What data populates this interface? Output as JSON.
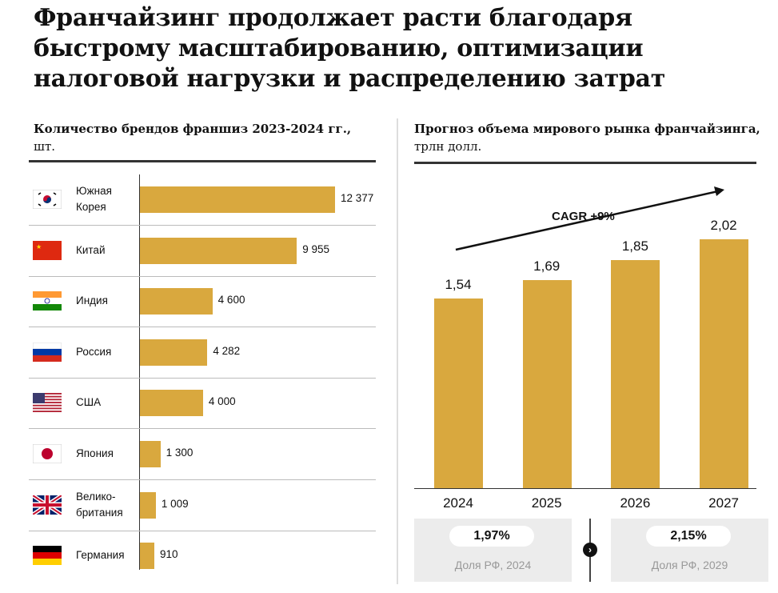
{
  "title": "Франчайзинг продолжает расти благодаря быстрому масштабированию, оптимизации налоговой нагрузки и распределению затрат",
  "chart_data": [
    {
      "type": "bar",
      "orientation": "horizontal",
      "title": "Количество брендов франшиз 2023-2024 гг.,",
      "unit": "шт.",
      "categories": [
        "Южная Корея",
        "Китай",
        "Индия",
        "Россия",
        "США",
        "Япония",
        "Велико-британия",
        "Германия"
      ],
      "flags": [
        "south-korea-flag",
        "china-flag",
        "india-flag",
        "russia-flag",
        "usa-flag",
        "japan-flag",
        "uk-flag",
        "germany-flag"
      ],
      "values": [
        12377,
        9955,
        4600,
        4282,
        4000,
        1300,
        1009,
        910
      ],
      "value_labels": [
        "12 377",
        "9 955",
        "4 600",
        "4 282",
        "4 000",
        "1 300",
        "1 009",
        "910"
      ],
      "color": "#D9A83E"
    },
    {
      "type": "bar",
      "title": "Прогноз объема мирового рынка франчайзинга,",
      "unit": "трлн долл.",
      "categories": [
        "2024",
        "2025",
        "2026",
        "2027"
      ],
      "values": [
        1.54,
        1.69,
        1.85,
        2.02
      ],
      "value_labels": [
        "1,54",
        "1,69",
        "1,85",
        "2,02"
      ],
      "annotation": "CAGR +9%",
      "color": "#D9A83E"
    }
  ],
  "share": [
    {
      "value": "1,97%",
      "caption": "Доля РФ, 2024"
    },
    {
      "value": "2,15%",
      "caption": "Доля РФ, 2029"
    }
  ]
}
